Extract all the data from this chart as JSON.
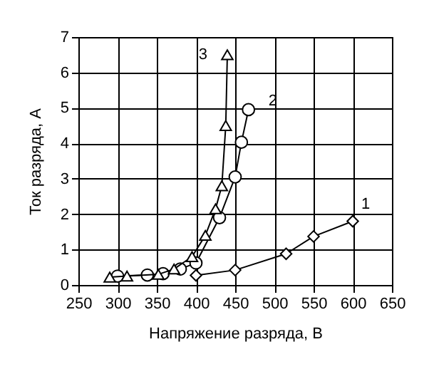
{
  "chart_data": {
    "type": "line",
    "xlabel": "Напряжение разряда, В",
    "ylabel": "Ток разряда, А",
    "xlim": [
      250,
      650
    ],
    "xticks": [
      250,
      300,
      350,
      400,
      450,
      500,
      550,
      600,
      650
    ],
    "ylim": [
      0,
      7
    ],
    "yticks": [
      0,
      1,
      2,
      3,
      4,
      5,
      6,
      7
    ],
    "grid": true,
    "line_style": "solid",
    "series": [
      {
        "name": "1",
        "color": "#000000",
        "marker": "diamond",
        "x": [
          400,
          450,
          515,
          550,
          600
        ],
        "values": [
          0.27,
          0.42,
          0.88,
          1.37,
          1.8
        ]
      },
      {
        "name": "2",
        "color": "#000000",
        "marker": "circle",
        "x": [
          300,
          338,
          358,
          380,
          400,
          430,
          450,
          458,
          467
        ],
        "values": [
          0.25,
          0.28,
          0.32,
          0.45,
          0.62,
          1.9,
          3.05,
          4.03,
          4.95
        ]
      },
      {
        "name": "3",
        "color": "#000000",
        "marker": "triangle",
        "x": [
          290,
          312,
          352,
          372,
          395,
          412,
          425,
          433,
          438,
          440
        ],
        "values": [
          0.22,
          0.25,
          0.3,
          0.45,
          0.8,
          1.4,
          2.15,
          2.8,
          4.5,
          6.5
        ]
      }
    ]
  }
}
